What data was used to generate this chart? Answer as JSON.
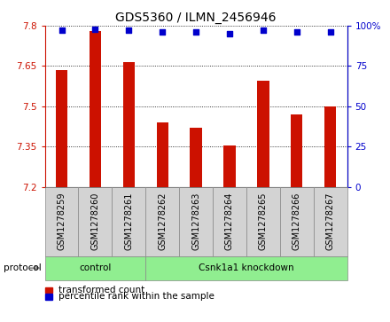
{
  "title": "GDS5360 / ILMN_2456946",
  "samples": [
    "GSM1278259",
    "GSM1278260",
    "GSM1278261",
    "GSM1278262",
    "GSM1278263",
    "GSM1278264",
    "GSM1278265",
    "GSM1278266",
    "GSM1278267"
  ],
  "bar_values": [
    7.635,
    7.78,
    7.665,
    7.44,
    7.42,
    7.355,
    7.595,
    7.47,
    7.5
  ],
  "percentile_values": [
    97,
    98,
    97,
    96,
    96,
    95,
    97,
    96,
    96
  ],
  "bar_color": "#cc1100",
  "dot_color": "#0000cc",
  "ylim": [
    7.2,
    7.8
  ],
  "y2lim": [
    0,
    100
  ],
  "yticks": [
    7.2,
    7.35,
    7.5,
    7.65,
    7.8
  ],
  "y2ticks": [
    0,
    25,
    50,
    75,
    100
  ],
  "ytick_labels": [
    "7.2",
    "7.35",
    "7.5",
    "7.65",
    "7.8"
  ],
  "y2tick_labels": [
    "0",
    "25",
    "50",
    "75",
    "100%"
  ],
  "control_samples": 3,
  "control_label": "control",
  "knockdown_label": "Csnk1a1 knockdown",
  "protocol_label": "protocol",
  "legend_bar_label": "transformed count",
  "legend_dot_label": "percentile rank within the sample",
  "bar_color_hex": "#cc1100",
  "dot_color_hex": "#0000cc",
  "sample_box_color": "#d3d3d3",
  "protocol_box_color": "#90ee90",
  "bar_width": 0.35,
  "title_fontsize": 10,
  "tick_fontsize": 7.5,
  "label_fontsize": 7.5,
  "sample_fontsize": 7
}
